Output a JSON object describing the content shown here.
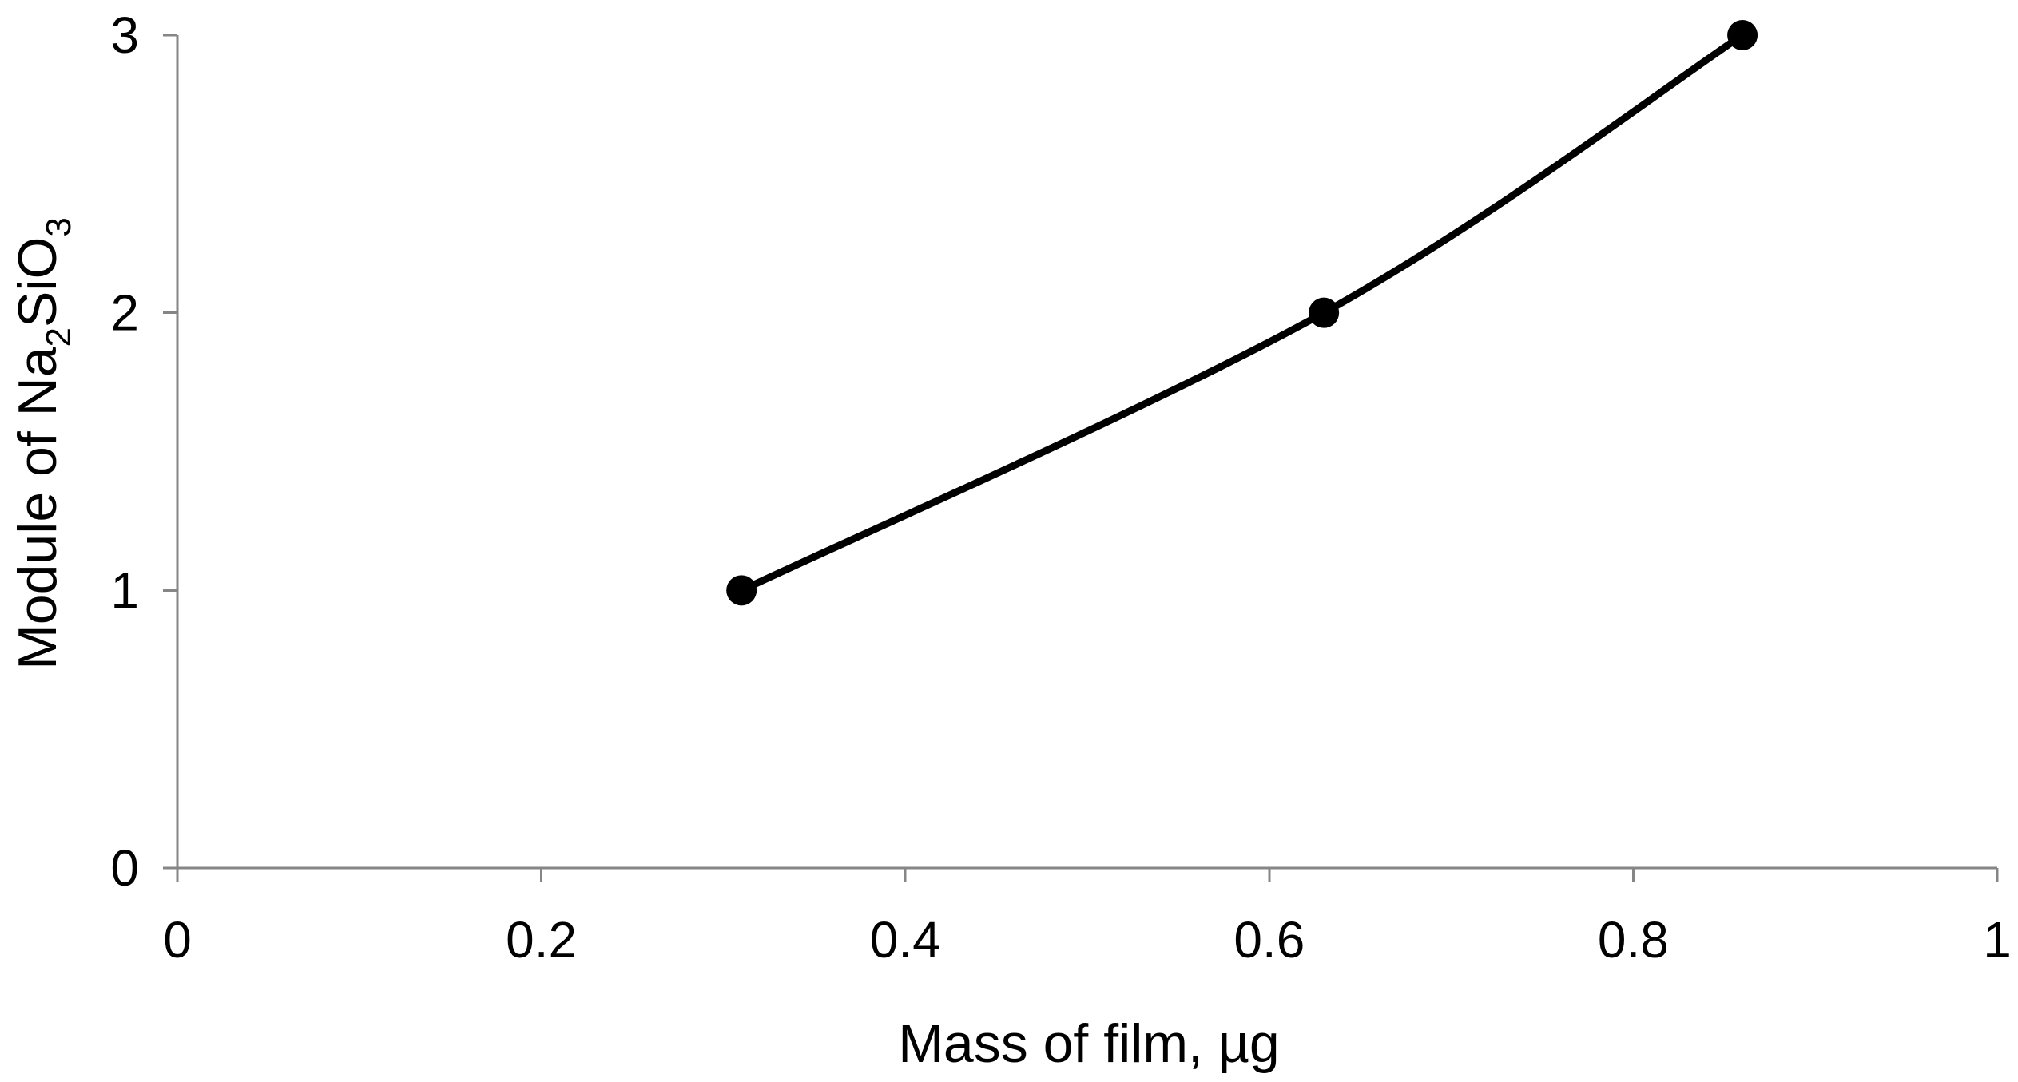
{
  "chart_data": {
    "type": "line",
    "title": "",
    "xlabel": "Mass of film, µg",
    "ylabel": {
      "prefix": "Module of Na",
      "sub1": "2",
      "mid": "SiO",
      "sub2": "3"
    },
    "xlim": [
      0,
      1
    ],
    "ylim": [
      0,
      3
    ],
    "x_ticks": [
      0,
      0.2,
      0.4,
      0.6,
      0.8,
      1
    ],
    "x_tick_labels": [
      "0",
      "0.2",
      "0.4",
      "0.6",
      "0.8",
      "1"
    ],
    "y_ticks": [
      0,
      1,
      2,
      3
    ],
    "y_tick_labels": [
      "0",
      "1",
      "2",
      "3"
    ],
    "grid": false,
    "legend": "none",
    "smoothed": true,
    "series": [
      {
        "x": [
          0.31,
          0.63,
          0.86
        ],
        "y": [
          1,
          2,
          3
        ],
        "color": "#000000",
        "marker": "circle"
      }
    ]
  }
}
